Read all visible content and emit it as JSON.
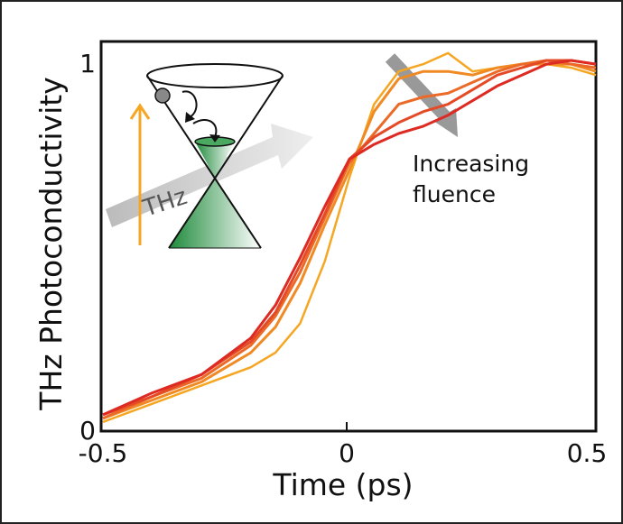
{
  "chart_data": {
    "type": "line",
    "xlabel": "Time (ps)",
    "ylabel": "THz Photoconductivity",
    "xlim": [
      -0.5,
      0.5
    ],
    "ylim": [
      0,
      1
    ],
    "xticks": [
      "-0.5",
      "0",
      "0.5"
    ],
    "yticks": [
      "0",
      "1"
    ],
    "grid": false,
    "annotation": {
      "line1": "Increasing",
      "line2": "fluence"
    },
    "inset_label": "THz",
    "x": [
      -0.5,
      -0.4,
      -0.3,
      -0.2,
      -0.15,
      -0.1,
      -0.05,
      0,
      0.05,
      0.1,
      0.15,
      0.2,
      0.25,
      0.3,
      0.35,
      0.4,
      0.45,
      0.5
    ],
    "series": [
      {
        "color": "#f5a623",
        "values": [
          0.01,
          0.06,
          0.11,
          0.16,
          0.2,
          0.28,
          0.45,
          0.68,
          0.88,
          0.97,
          0.99,
          1.02,
          0.97,
          0.98,
          0.99,
          0.99,
          0.98,
          0.96
        ]
      },
      {
        "color": "#f08a24",
        "values": [
          0.02,
          0.07,
          0.12,
          0.2,
          0.27,
          0.39,
          0.55,
          0.7,
          0.86,
          0.95,
          0.97,
          0.97,
          0.96,
          0.98,
          0.99,
          0.99,
          0.99,
          0.97
        ]
      },
      {
        "color": "#ec6a28",
        "values": [
          0.02,
          0.08,
          0.13,
          0.22,
          0.3,
          0.42,
          0.57,
          0.72,
          0.8,
          0.88,
          0.9,
          0.91,
          0.94,
          0.97,
          0.99,
          1.0,
          0.99,
          0.98
        ]
      },
      {
        "color": "#e44a26",
        "values": [
          0.03,
          0.08,
          0.14,
          0.23,
          0.31,
          0.44,
          0.58,
          0.73,
          0.79,
          0.83,
          0.86,
          0.88,
          0.92,
          0.96,
          0.98,
          1.0,
          1.0,
          0.99
        ]
      },
      {
        "color": "#dd2a22",
        "values": [
          0.03,
          0.09,
          0.14,
          0.24,
          0.33,
          0.46,
          0.6,
          0.73,
          0.77,
          0.8,
          0.82,
          0.85,
          0.89,
          0.93,
          0.96,
          0.99,
          1.0,
          0.99
        ]
      }
    ]
  }
}
